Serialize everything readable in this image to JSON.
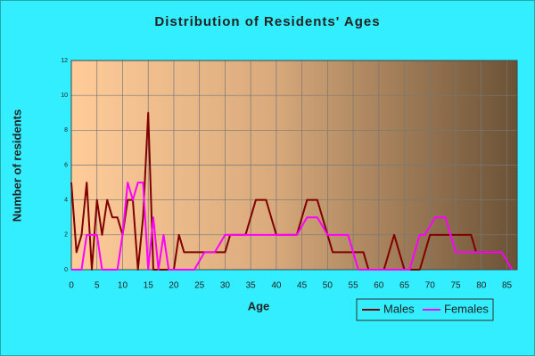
{
  "chart_data": {
    "type": "line",
    "title": "Distribution of Residents' Ages",
    "x_label": "Age",
    "y_label": "Number of residents",
    "x": [
      0,
      1,
      2,
      3,
      4,
      5,
      6,
      7,
      8,
      9,
      10,
      11,
      12,
      13,
      14,
      15,
      16,
      17,
      18,
      19,
      20,
      21,
      22,
      23,
      24,
      25,
      26,
      27,
      28,
      29,
      30,
      31,
      32,
      33,
      34,
      35,
      36,
      37,
      38,
      39,
      40,
      41,
      42,
      43,
      44,
      45,
      46,
      47,
      48,
      49,
      50,
      51,
      52,
      53,
      54,
      55,
      56,
      57,
      58,
      59,
      60,
      61,
      62,
      63,
      64,
      65,
      66,
      67,
      68,
      69,
      70,
      71,
      72,
      73,
      74,
      75,
      76,
      77,
      78,
      79,
      80,
      81,
      82,
      83,
      84,
      85,
      86
    ],
    "series": [
      {
        "name": "Males",
        "color": "#800000",
        "values": [
          5,
          1,
          2,
          5,
          0,
          4,
          2,
          4,
          3,
          3,
          2,
          4,
          4,
          0,
          3,
          9,
          0,
          0,
          0,
          0,
          0,
          2,
          1,
          1,
          1,
          1,
          1,
          1,
          1,
          1,
          1,
          2,
          2,
          2,
          2,
          3,
          4,
          4,
          4,
          3,
          2,
          2,
          2,
          2,
          2,
          3,
          4,
          4,
          4,
          3,
          2,
          1,
          1,
          1,
          1,
          1,
          1,
          1,
          0,
          0,
          0,
          0,
          1,
          2,
          1,
          0,
          0,
          0,
          0,
          1,
          2,
          2,
          2,
          2,
          2,
          2,
          2,
          2,
          2,
          1,
          1,
          1,
          1,
          1,
          1,
          0.5,
          0
        ]
      },
      {
        "name": "Females",
        "color": "#ff00ff",
        "values": [
          0,
          0,
          0,
          2,
          2,
          2,
          0,
          0,
          0,
          0,
          2,
          5,
          4,
          5,
          5,
          0,
          3,
          0,
          2,
          0,
          0,
          0,
          0,
          0,
          0,
          0.5,
          1,
          1,
          1,
          1.5,
          2,
          2,
          2,
          2,
          2,
          2,
          2,
          2,
          2,
          2,
          2,
          2,
          2,
          2,
          2,
          2.5,
          3,
          3,
          3,
          2.5,
          2,
          2,
          2,
          2,
          2,
          1,
          0,
          0,
          0,
          0,
          0,
          0,
          0,
          0,
          0,
          0,
          0,
          1,
          2,
          2,
          2.5,
          3,
          3,
          3,
          2,
          1,
          1,
          1,
          1,
          1,
          1,
          1,
          1,
          1,
          1,
          0.5,
          0
        ]
      }
    ],
    "xlim": [
      0,
      87
    ],
    "ylim": [
      0,
      12
    ],
    "xticks": [
      0,
      5,
      10,
      15,
      20,
      25,
      30,
      35,
      40,
      45,
      50,
      55,
      60,
      65,
      70,
      75,
      80,
      85
    ],
    "yticks": [
      0,
      2,
      4,
      6,
      8,
      10,
      12
    ],
    "grid": true,
    "legend": "bottom-right"
  }
}
